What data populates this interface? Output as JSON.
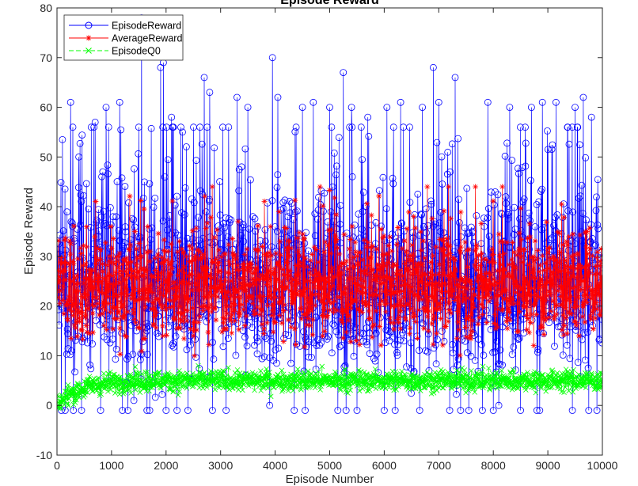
{
  "chart_data": {
    "type": "line",
    "title": "Episode Reward",
    "xlabel": "Episode Number",
    "ylabel": "Episode Reward",
    "xlim": [
      0,
      10000
    ],
    "ylim": [
      -10,
      80
    ],
    "xticks": [
      0,
      1000,
      2000,
      3000,
      4000,
      5000,
      6000,
      7000,
      8000,
      9000,
      10000
    ],
    "yticks": [
      -10,
      0,
      10,
      20,
      30,
      40,
      50,
      60,
      70,
      80
    ],
    "xtick_labels": [
      "0",
      "1000",
      "2000",
      "3000",
      "4000",
      "5000",
      "6000",
      "7000",
      "8000",
      "9000",
      "10000"
    ],
    "ytick_labels": [
      "-10",
      "0",
      "10",
      "20",
      "30",
      "40",
      "50",
      "60",
      "70",
      "80"
    ],
    "grid": false,
    "legend_position": "top-left",
    "series": [
      {
        "name": "EpisodeReward",
        "color": "#0000ff",
        "marker": "circle",
        "line_style": "solid",
        "summary": {
          "typical_low": 12,
          "typical_high": 38,
          "min": -1,
          "max": 78,
          "mean": 24
        },
        "peaks": [
          [
            100,
            53.5
          ],
          [
            150,
            60
          ],
          [
            250,
            61
          ],
          [
            400,
            50
          ],
          [
            700,
            57
          ],
          [
            900,
            60
          ],
          [
            1150,
            61
          ],
          [
            1300,
            68
          ],
          [
            1500,
            56
          ],
          [
            1550,
            78
          ],
          [
            1650,
            60
          ],
          [
            1700,
            76
          ],
          [
            1900,
            68
          ],
          [
            1950,
            69
          ],
          [
            2100,
            58
          ],
          [
            2300,
            55
          ],
          [
            2400,
            63
          ],
          [
            2700,
            66
          ],
          [
            2800,
            63
          ],
          [
            3100,
            63
          ],
          [
            3300,
            62
          ],
          [
            3500,
            60
          ],
          [
            3900,
            67
          ],
          [
            3950,
            70
          ],
          [
            4050,
            62
          ],
          [
            4500,
            60
          ],
          [
            4700,
            61
          ],
          [
            5000,
            60
          ],
          [
            5150,
            61
          ],
          [
            5250,
            67
          ],
          [
            5400,
            60
          ],
          [
            5700,
            58
          ],
          [
            6050,
            60
          ],
          [
            6300,
            61
          ],
          [
            6700,
            60
          ],
          [
            6900,
            68
          ],
          [
            7000,
            61
          ],
          [
            7300,
            66
          ],
          [
            7400,
            61
          ],
          [
            7900,
            61
          ],
          [
            8300,
            60
          ],
          [
            8700,
            60
          ],
          [
            8900,
            61
          ],
          [
            9150,
            61
          ],
          [
            9500,
            60
          ],
          [
            9650,
            62
          ],
          [
            9800,
            58
          ]
        ],
        "dips": [
          [
            80,
            -1
          ],
          [
            150,
            -1
          ],
          [
            300,
            -1
          ],
          [
            450,
            -1
          ],
          [
            800,
            -1
          ],
          [
            1200,
            -1
          ],
          [
            1300,
            -1
          ],
          [
            1650,
            -1
          ],
          [
            1700,
            -1
          ],
          [
            2000,
            -1
          ],
          [
            2200,
            -1
          ],
          [
            2400,
            -1
          ],
          [
            2850,
            -1
          ],
          [
            3100,
            -1
          ],
          [
            3900,
            0
          ],
          [
            4350,
            -1
          ],
          [
            4550,
            -1
          ],
          [
            5150,
            -1
          ],
          [
            5300,
            -1
          ],
          [
            5500,
            -1
          ],
          [
            6000,
            -1
          ],
          [
            6200,
            -1
          ],
          [
            6650,
            -1
          ],
          [
            7200,
            -1
          ],
          [
            7400,
            -1
          ],
          [
            7550,
            -1
          ],
          [
            7800,
            -1
          ],
          [
            8000,
            -1
          ],
          [
            8100,
            0
          ],
          [
            8500,
            -1
          ],
          [
            8800,
            -1
          ],
          [
            8850,
            -1
          ],
          [
            9450,
            -1
          ],
          [
            9750,
            -1
          ],
          [
            9900,
            -1
          ]
        ]
      },
      {
        "name": "AverageReward",
        "color": "#ff0000",
        "marker": "asterisk",
        "line_style": "solid",
        "summary": {
          "typical_low": 15,
          "typical_high": 33,
          "min": 9,
          "max": 44,
          "mean": 24
        }
      },
      {
        "name": "EpisodeQ0",
        "color": "#00ff00",
        "marker": "x",
        "line_style": "dashed",
        "summary": {
          "start": 0,
          "plateau_low": 2.5,
          "plateau_high": 8,
          "mean": 5
        }
      }
    ]
  }
}
